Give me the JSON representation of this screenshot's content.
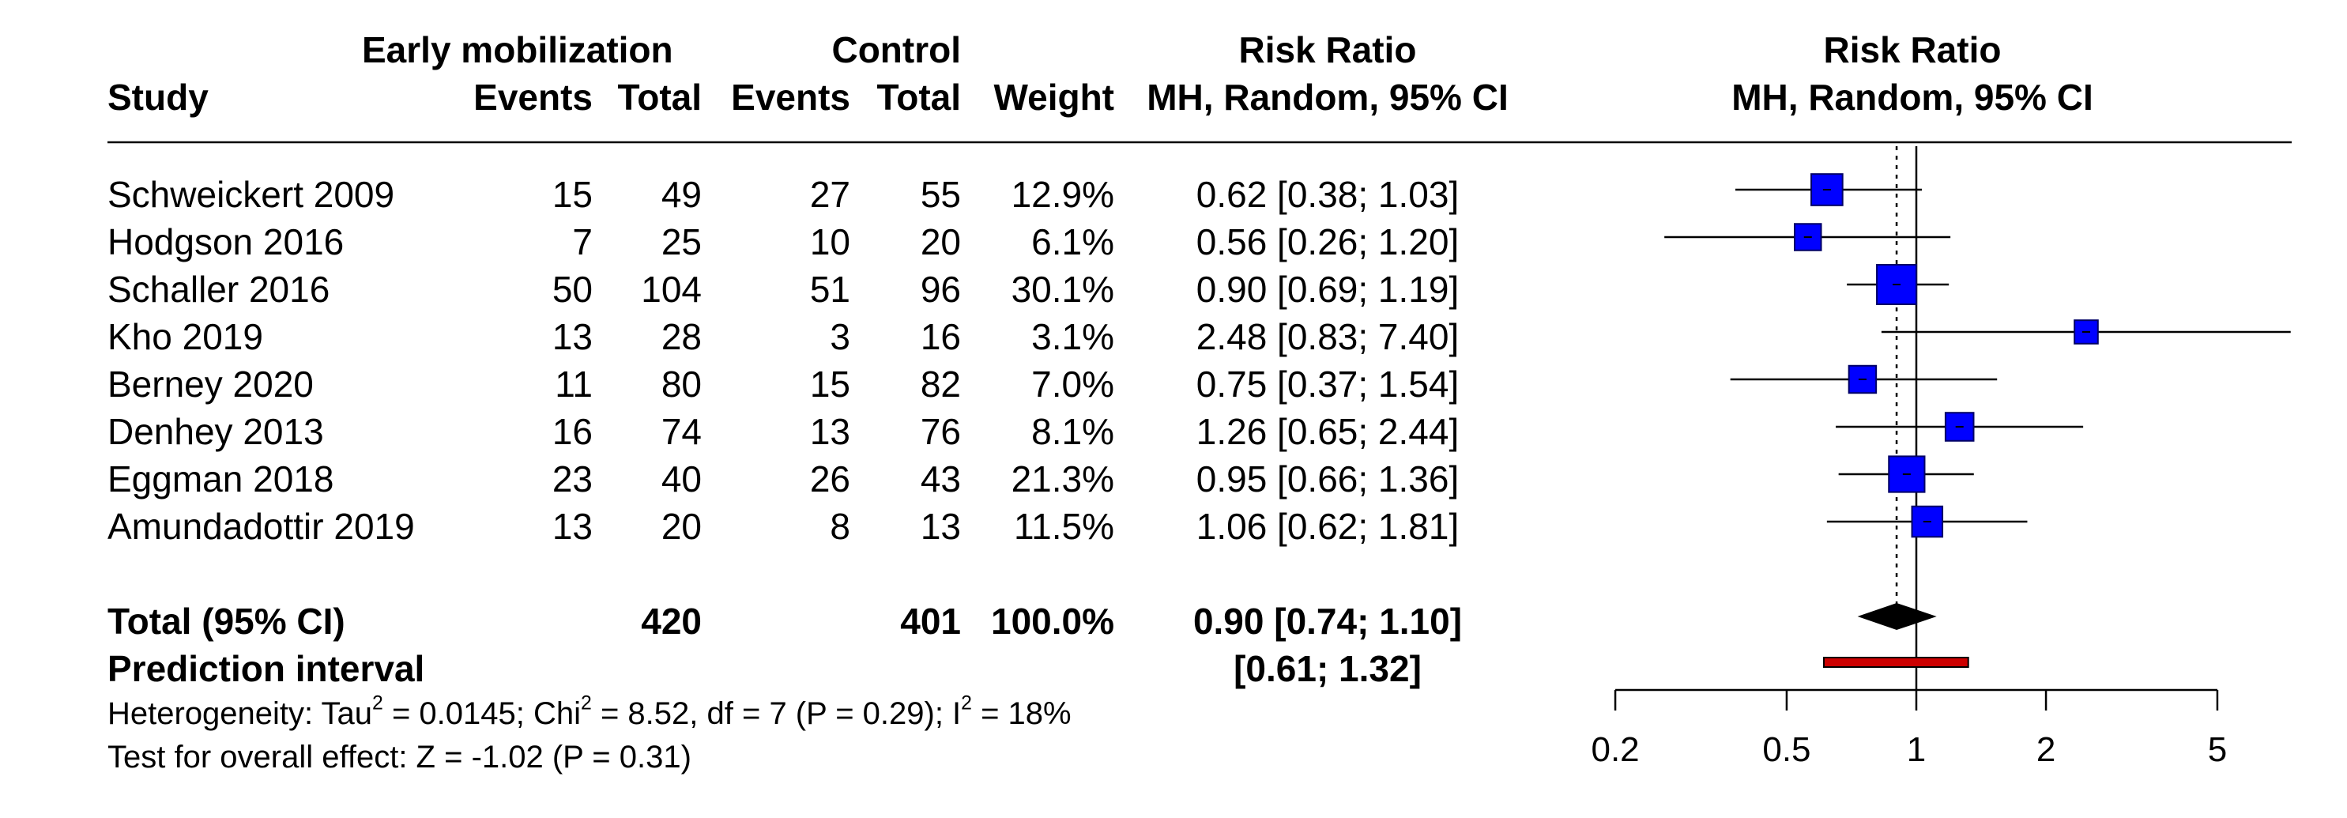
{
  "header": {
    "study": "Study",
    "group1": "Early mobilization",
    "group2": "Control",
    "events": "Events",
    "total": "Total",
    "weight": "Weight",
    "rr_title": "Risk Ratio",
    "rr_method": "MH, Random, 95% CI",
    "plot_title": "Risk Ratio",
    "plot_method": "MH, Random, 95% CI"
  },
  "studies": [
    {
      "study": "Schweickert 2009",
      "events1": "15",
      "total1": "49",
      "events2": "27",
      "total2": "55",
      "weight": "12.9%",
      "ci": "0.62 [0.38; 1.03]"
    },
    {
      "study": "Hodgson 2016",
      "events1": "7",
      "total1": "25",
      "events2": "10",
      "total2": "20",
      "weight": "6.1%",
      "ci": "0.56 [0.26; 1.20]"
    },
    {
      "study": "Schaller 2016",
      "events1": "50",
      "total1": "104",
      "events2": "51",
      "total2": "96",
      "weight": "30.1%",
      "ci": "0.90 [0.69; 1.19]"
    },
    {
      "study": "Kho 2019",
      "events1": "13",
      "total1": "28",
      "events2": "3",
      "total2": "16",
      "weight": "3.1%",
      "ci": "2.48 [0.83; 7.40]"
    },
    {
      "study": "Berney 2020",
      "events1": "11",
      "total1": "80",
      "events2": "15",
      "total2": "82",
      "weight": "7.0%",
      "ci": "0.75 [0.37; 1.54]"
    },
    {
      "study": "Denhey 2013",
      "events1": "16",
      "total1": "74",
      "events2": "13",
      "total2": "76",
      "weight": "8.1%",
      "ci": "1.26 [0.65; 2.44]"
    },
    {
      "study": "Eggman 2018",
      "events1": "23",
      "total1": "40",
      "events2": "26",
      "total2": "43",
      "weight": "21.3%",
      "ci": "0.95 [0.66; 1.36]"
    },
    {
      "study": "Amundadottir 2019",
      "events1": "13",
      "total1": "20",
      "events2": "8",
      "total2": "13",
      "weight": "11.5%",
      "ci": "1.06 [0.62; 1.81]"
    }
  ],
  "total": {
    "label": "Total (95% CI)",
    "total1": "420",
    "total2": "401",
    "weight": "100.0%",
    "ci": "0.90 [0.74; 1.10]"
  },
  "prediction": {
    "label": "Prediction interval",
    "ci": "[0.61; 1.32]"
  },
  "footer": {
    "het_prefix": "Heterogeneity: Tau",
    "het_tau2": "2",
    "het_mid1": " = 0.0145; Chi",
    "het_chi2": "2",
    "het_mid2": " = 8.52, df = 7 (P = 0.29); I",
    "het_i2": "2",
    "het_end": " = 18%",
    "overall": "Test for overall effect: Z = -1.02 (P = 0.31)"
  },
  "chart_data": {
    "type": "forest",
    "scale": "log",
    "xlim": [
      0.2,
      5
    ],
    "ticks": [
      0.2,
      0.5,
      1,
      2,
      5
    ],
    "tick_labels": [
      "0.2",
      "0.5",
      "1",
      "2",
      "5"
    ],
    "reference_line": 1,
    "pooled_line": 0.9,
    "square_color": "#0000ff",
    "prediction_color": "#cc0000",
    "series": [
      {
        "study": "Schweickert 2009",
        "rr": 0.62,
        "lower": 0.38,
        "upper": 1.03,
        "weight": 12.9
      },
      {
        "study": "Hodgson 2016",
        "rr": 0.56,
        "lower": 0.26,
        "upper": 1.2,
        "weight": 6.1
      },
      {
        "study": "Schaller 2016",
        "rr": 0.9,
        "lower": 0.69,
        "upper": 1.19,
        "weight": 30.1
      },
      {
        "study": "Kho 2019",
        "rr": 2.48,
        "lower": 0.83,
        "upper": 7.4,
        "weight": 3.1
      },
      {
        "study": "Berney 2020",
        "rr": 0.75,
        "lower": 0.37,
        "upper": 1.54,
        "weight": 7.0
      },
      {
        "study": "Denhey 2013",
        "rr": 1.26,
        "lower": 0.65,
        "upper": 2.44,
        "weight": 8.1
      },
      {
        "study": "Eggman 2018",
        "rr": 0.95,
        "lower": 0.66,
        "upper": 1.36,
        "weight": 21.3
      },
      {
        "study": "Amundadottir 2019",
        "rr": 1.06,
        "lower": 0.62,
        "upper": 1.81,
        "weight": 11.5
      }
    ],
    "summary": {
      "rr": 0.9,
      "lower": 0.74,
      "upper": 1.1
    },
    "prediction_interval": {
      "lower": 0.61,
      "upper": 1.32
    }
  }
}
